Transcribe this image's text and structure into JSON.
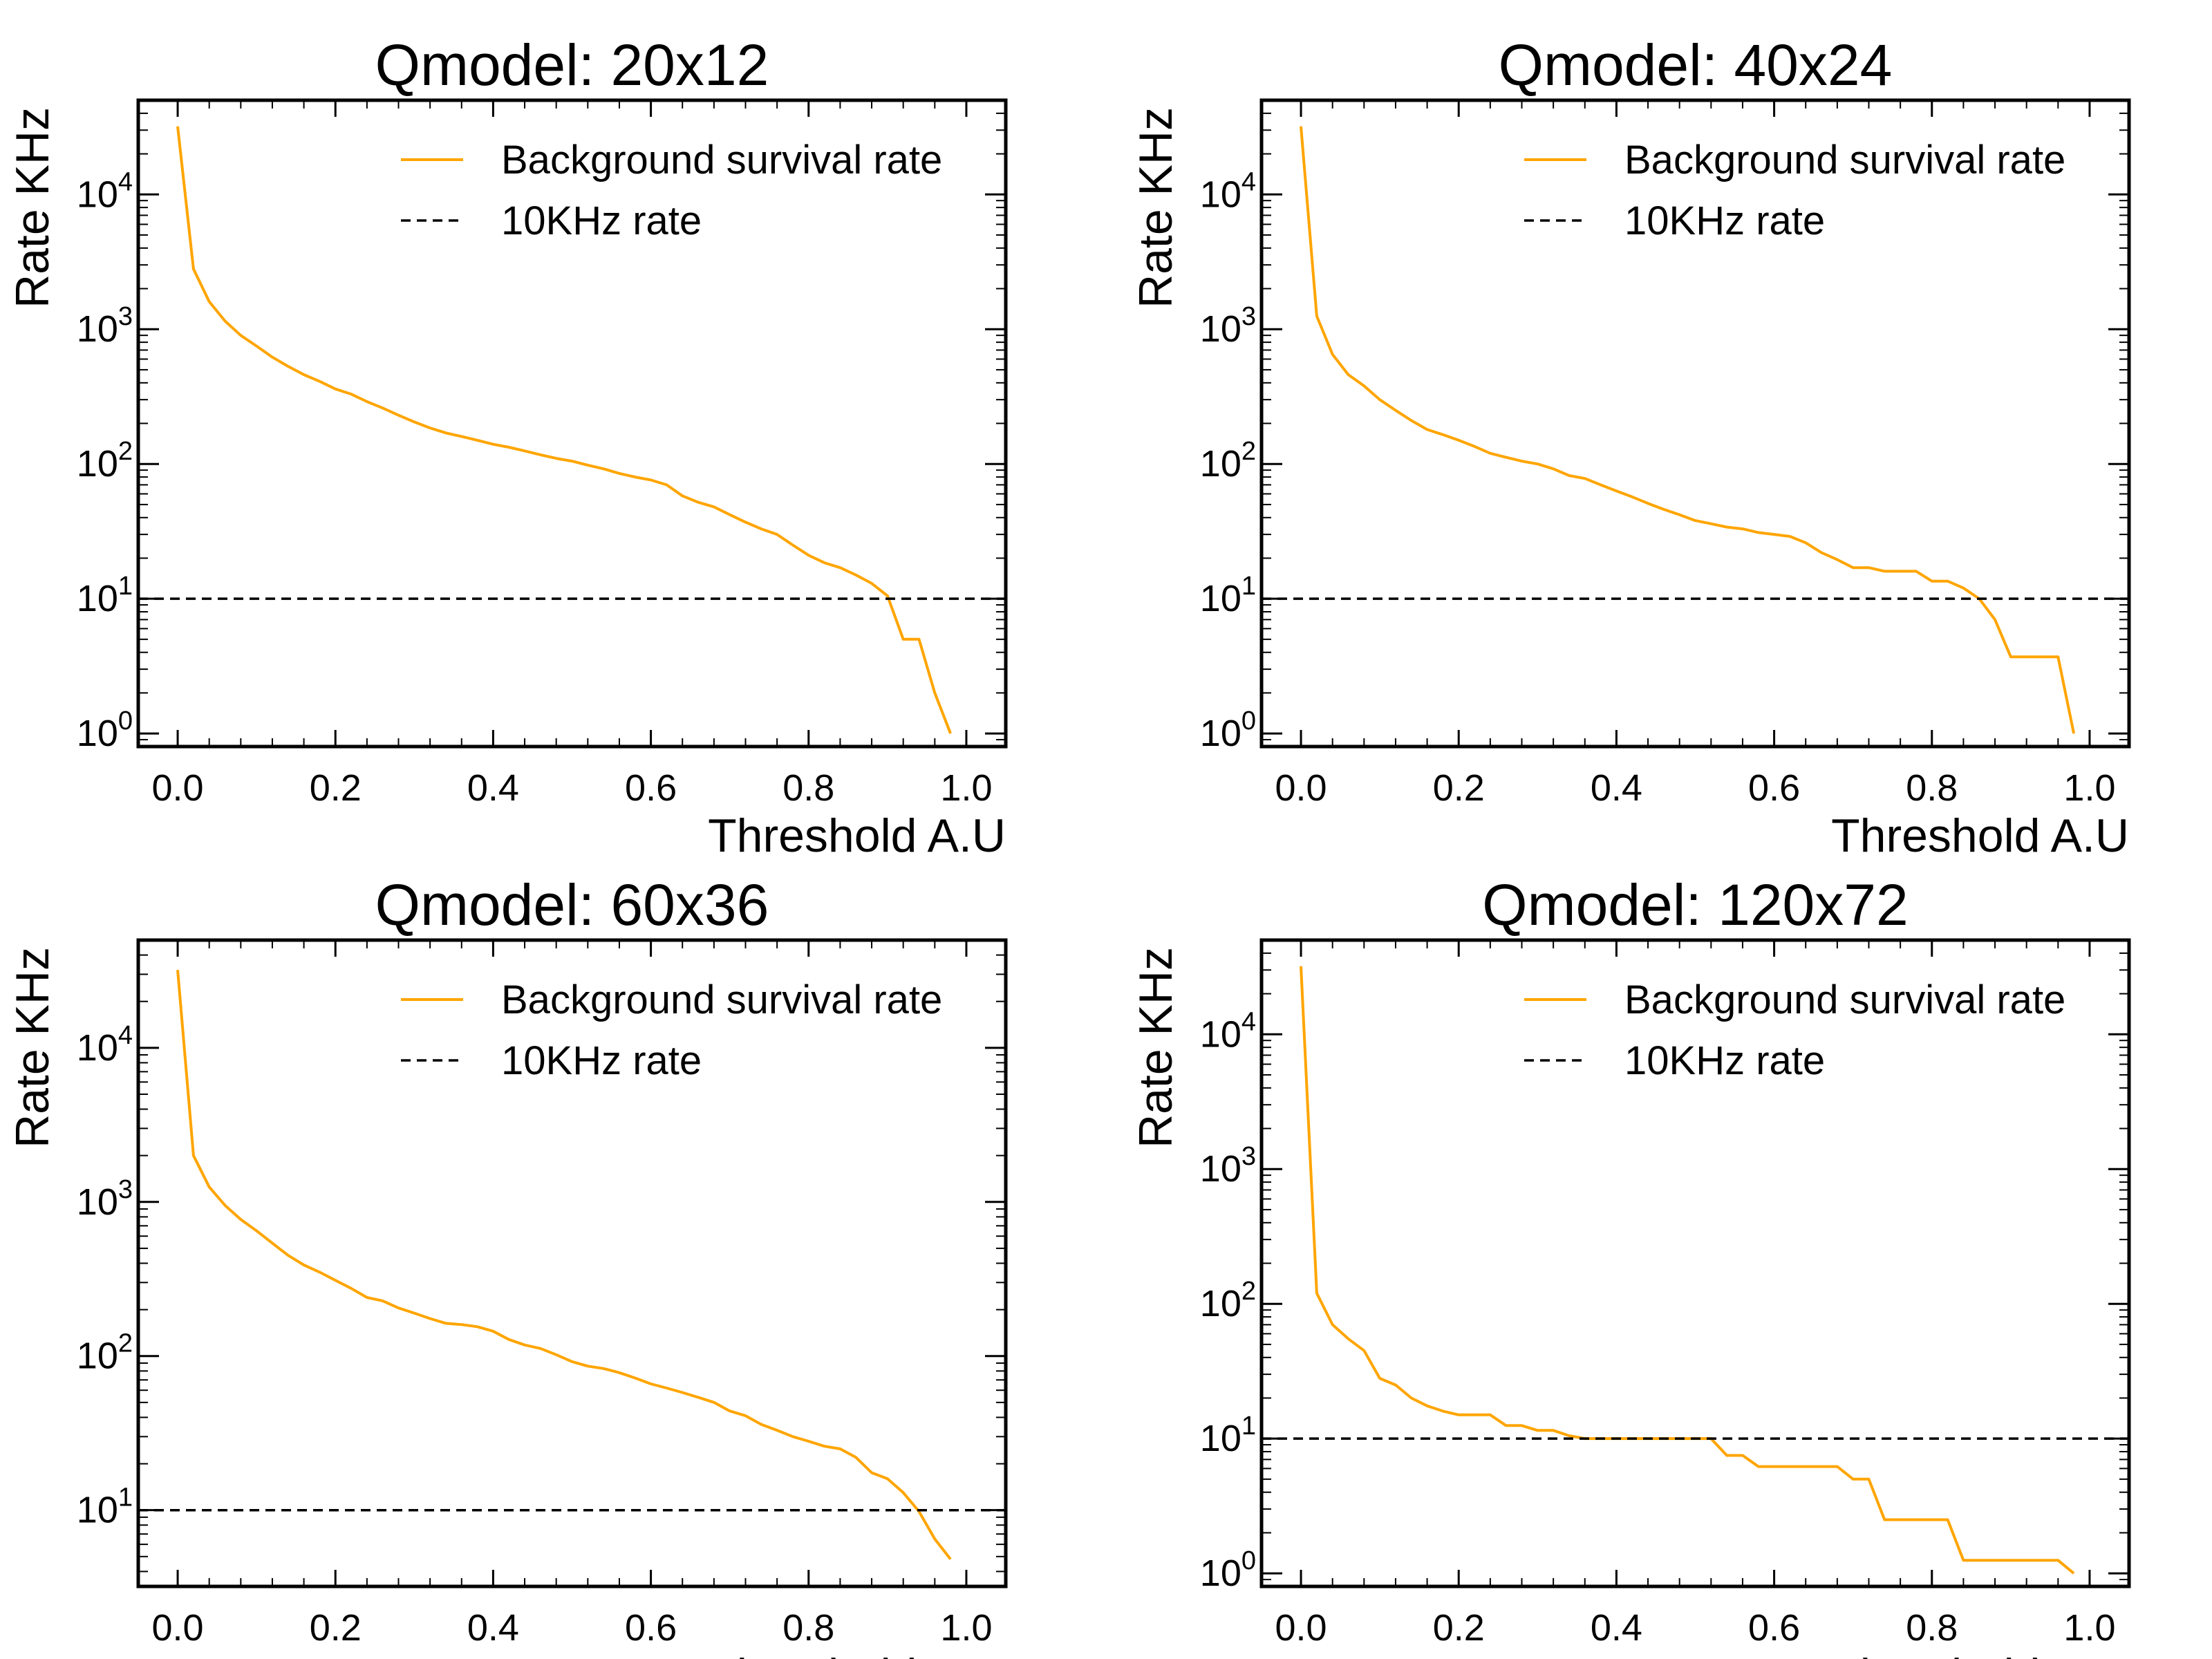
{
  "chart_data": [
    {
      "type": "line",
      "title": "Qmodel: 20x12",
      "xlabel": "Threshold A.U",
      "ylabel": "Rate KHz",
      "yscale": "log",
      "xlim": [
        -0.05,
        1.05
      ],
      "ylim": [
        0.8,
        50000
      ],
      "x_ticks": [
        "0.0",
        "0.2",
        "0.4",
        "0.6",
        "0.8",
        "1.0"
      ],
      "y_ticks": [
        {
          "base": "10",
          "exp": "0"
        },
        {
          "base": "10",
          "exp": "1"
        },
        {
          "base": "10",
          "exp": "2"
        },
        {
          "base": "10",
          "exp": "3"
        },
        {
          "base": "10",
          "exp": "4"
        }
      ],
      "legend": {
        "position": "top-right",
        "entries": [
          "Background survival rate",
          "10KHz rate"
        ]
      },
      "grid": false,
      "series": [
        {
          "name": "Background survival rate",
          "color": "#FFA500",
          "x": [
            0.0,
            0.02,
            0.04,
            0.06,
            0.08,
            0.1,
            0.12,
            0.14,
            0.16,
            0.18,
            0.2,
            0.22,
            0.24,
            0.26,
            0.28,
            0.3,
            0.32,
            0.34,
            0.36,
            0.38,
            0.4,
            0.42,
            0.44,
            0.46,
            0.48,
            0.5,
            0.52,
            0.54,
            0.56,
            0.58,
            0.6,
            0.62,
            0.64,
            0.66,
            0.68,
            0.7,
            0.72,
            0.74,
            0.76,
            0.78,
            0.8,
            0.82,
            0.84,
            0.86,
            0.88,
            0.9,
            0.92,
            0.94,
            0.96,
            0.98
          ],
          "y": [
            32000,
            2800,
            1600,
            1150,
            900,
            750,
            620,
            530,
            460,
            410,
            360,
            330,
            290,
            260,
            230,
            205,
            185,
            170,
            160,
            150,
            140,
            133,
            125,
            117,
            110,
            105,
            98,
            92,
            85,
            80,
            76,
            70,
            58,
            52,
            48,
            42,
            37,
            33,
            30,
            25,
            21,
            18.5,
            17,
            15,
            13,
            10.5,
            5,
            5,
            2.0,
            1.0
          ]
        },
        {
          "name": "10KHz rate",
          "color": "#000000",
          "dashed": true,
          "x": [
            -0.05,
            1.05
          ],
          "y": [
            10,
            10
          ]
        }
      ]
    },
    {
      "type": "line",
      "title": "Qmodel: 40x24",
      "xlabel": "Threshold A.U",
      "ylabel": "Rate KHz",
      "yscale": "log",
      "xlim": [
        -0.05,
        1.05
      ],
      "ylim": [
        0.8,
        50000
      ],
      "x_ticks": [
        "0.0",
        "0.2",
        "0.4",
        "0.6",
        "0.8",
        "1.0"
      ],
      "y_ticks": [
        {
          "base": "10",
          "exp": "0"
        },
        {
          "base": "10",
          "exp": "1"
        },
        {
          "base": "10",
          "exp": "2"
        },
        {
          "base": "10",
          "exp": "3"
        },
        {
          "base": "10",
          "exp": "4"
        }
      ],
      "legend": {
        "position": "top-right",
        "entries": [
          "Background survival rate",
          "10KHz rate"
        ]
      },
      "grid": false,
      "series": [
        {
          "name": "Background survival rate",
          "color": "#FFA500",
          "x": [
            0.0,
            0.02,
            0.04,
            0.06,
            0.08,
            0.1,
            0.12,
            0.14,
            0.16,
            0.18,
            0.2,
            0.22,
            0.24,
            0.26,
            0.28,
            0.3,
            0.32,
            0.34,
            0.36,
            0.38,
            0.4,
            0.42,
            0.44,
            0.46,
            0.48,
            0.5,
            0.52,
            0.54,
            0.56,
            0.58,
            0.6,
            0.62,
            0.64,
            0.66,
            0.68,
            0.7,
            0.72,
            0.74,
            0.76,
            0.78,
            0.8,
            0.82,
            0.84,
            0.86,
            0.88,
            0.9,
            0.92,
            0.94,
            0.96,
            0.98
          ],
          "y": [
            32000,
            1250,
            650,
            460,
            380,
            300,
            250,
            210,
            180,
            165,
            150,
            135,
            120,
            112,
            105,
            100,
            92,
            82,
            78,
            70,
            63,
            57,
            51,
            46,
            42,
            38,
            36,
            34,
            33,
            31,
            30,
            29,
            26,
            22,
            19.5,
            17,
            17,
            16,
            16,
            16,
            13.5,
            13.5,
            12,
            10,
            7,
            3.7,
            3.7,
            3.7,
            3.7,
            1.0
          ]
        },
        {
          "name": "10KHz rate",
          "color": "#000000",
          "dashed": true,
          "x": [
            -0.05,
            1.05
          ],
          "y": [
            10,
            10
          ]
        }
      ]
    },
    {
      "type": "line",
      "title": "Qmodel: 60x36",
      "xlabel": "Threshold A.U",
      "ylabel": "Rate KHz",
      "yscale": "log",
      "xlim": [
        -0.05,
        1.05
      ],
      "ylim": [
        3.2,
        50000
      ],
      "x_ticks": [
        "0.0",
        "0.2",
        "0.4",
        "0.6",
        "0.8",
        "1.0"
      ],
      "y_ticks": [
        {
          "base": "10",
          "exp": "1"
        },
        {
          "base": "10",
          "exp": "2"
        },
        {
          "base": "10",
          "exp": "3"
        },
        {
          "base": "10",
          "exp": "4"
        }
      ],
      "legend": {
        "position": "top-right",
        "entries": [
          "Background survival rate",
          "10KHz rate"
        ]
      },
      "grid": false,
      "series": [
        {
          "name": "Background survival rate",
          "color": "#FFA500",
          "x": [
            0.0,
            0.02,
            0.04,
            0.06,
            0.08,
            0.1,
            0.12,
            0.14,
            0.16,
            0.18,
            0.2,
            0.22,
            0.24,
            0.26,
            0.28,
            0.3,
            0.32,
            0.34,
            0.36,
            0.38,
            0.4,
            0.42,
            0.44,
            0.46,
            0.48,
            0.5,
            0.52,
            0.54,
            0.56,
            0.58,
            0.6,
            0.62,
            0.64,
            0.66,
            0.68,
            0.7,
            0.72,
            0.74,
            0.76,
            0.78,
            0.8,
            0.82,
            0.84,
            0.86,
            0.88,
            0.9,
            0.92,
            0.94,
            0.96,
            0.98
          ],
          "y": [
            32000,
            2000,
            1250,
            950,
            770,
            650,
            540,
            450,
            390,
            350,
            310,
            275,
            240,
            228,
            205,
            190,
            175,
            163,
            160,
            155,
            145,
            128,
            118,
            112,
            102,
            92,
            86,
            83,
            78,
            72,
            66,
            62,
            58,
            54,
            50,
            44,
            41,
            36,
            33,
            30,
            28,
            26,
            25,
            22,
            17.5,
            16,
            13,
            9.8,
            6.5,
            4.8
          ]
        },
        {
          "name": "10KHz rate",
          "color": "#000000",
          "dashed": true,
          "x": [
            -0.05,
            1.05
          ],
          "y": [
            10,
            10
          ]
        }
      ]
    },
    {
      "type": "line",
      "title": "Qmodel: 120x72",
      "xlabel": "Threshold A.U",
      "ylabel": "Rate KHz",
      "yscale": "log",
      "xlim": [
        -0.05,
        1.05
      ],
      "ylim": [
        0.8,
        50000
      ],
      "x_ticks": [
        "0.0",
        "0.2",
        "0.4",
        "0.6",
        "0.8",
        "1.0"
      ],
      "y_ticks": [
        {
          "base": "10",
          "exp": "0"
        },
        {
          "base": "10",
          "exp": "1"
        },
        {
          "base": "10",
          "exp": "2"
        },
        {
          "base": "10",
          "exp": "3"
        },
        {
          "base": "10",
          "exp": "4"
        }
      ],
      "legend": {
        "position": "top-right",
        "entries": [
          "Background survival rate",
          "10KHz rate"
        ]
      },
      "grid": false,
      "series": [
        {
          "name": "Background survival rate",
          "color": "#FFA500",
          "x": [
            0.0,
            0.02,
            0.04,
            0.06,
            0.08,
            0.1,
            0.12,
            0.14,
            0.16,
            0.18,
            0.2,
            0.22,
            0.24,
            0.26,
            0.28,
            0.3,
            0.32,
            0.34,
            0.36,
            0.38,
            0.4,
            0.42,
            0.44,
            0.46,
            0.48,
            0.5,
            0.52,
            0.54,
            0.56,
            0.58,
            0.6,
            0.62,
            0.64,
            0.66,
            0.68,
            0.7,
            0.72,
            0.74,
            0.76,
            0.78,
            0.8,
            0.82,
            0.84,
            0.86,
            0.88,
            0.9,
            0.92,
            0.94,
            0.96,
            0.98
          ],
          "y": [
            32000,
            120,
            70,
            55,
            45,
            28,
            25,
            20,
            17.5,
            16,
            15,
            15,
            15,
            12.5,
            12.5,
            11.5,
            11.5,
            10.5,
            10,
            10,
            10,
            10,
            10,
            10,
            10,
            10,
            10,
            7.5,
            7.5,
            6.2,
            6.2,
            6.2,
            6.2,
            6.2,
            6.2,
            5,
            5,
            2.5,
            2.5,
            2.5,
            2.5,
            2.5,
            1.25,
            1.25,
            1.25,
            1.25,
            1.25,
            1.25,
            1.25,
            1.0
          ]
        },
        {
          "name": "10KHz rate",
          "color": "#000000",
          "dashed": true,
          "x": [
            -0.05,
            1.05
          ],
          "y": [
            10,
            10
          ]
        }
      ]
    }
  ]
}
